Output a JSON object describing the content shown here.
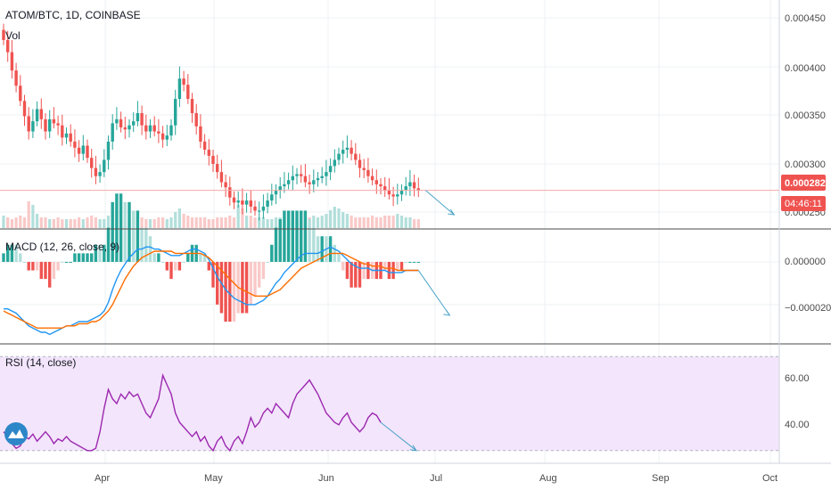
{
  "symbol_title": "ATOM/BTC, 1D, COINBASE",
  "volume_label": "Vol",
  "price_tag": "0.000282",
  "countdown_tag": "04:46:11",
  "colors": {
    "up": "#26a69a",
    "down": "#ef5350",
    "vol_up": "#b2dfdb",
    "vol_down": "#f8c9c8",
    "macd_line": "#2196f3",
    "signal_line": "#ff6d00",
    "rsi_line": "#9c27b0",
    "rsi_band": "#f3e5fb",
    "projection": "#4aa3c8",
    "price_line": "#f4aaa8",
    "tag_bg": "#ef5350"
  },
  "chart_data": [
    {
      "type": "candlestick",
      "title": "ATOM/BTC, 1D, COINBASE",
      "y_ticks": [
        "0.000450",
        "0.000400",
        "0.000350",
        "0.000300",
        "0.000250"
      ],
      "ylim": [
        0.000244,
        0.000465
      ],
      "last_price": 0.000282,
      "projection_target": 0.000258,
      "closes": [
        0.00043,
        0.000418,
        0.0004,
        0.000385,
        0.00037,
        0.000355,
        0.00034,
        0.00035,
        0.000362,
        0.000352,
        0.00034,
        0.000352,
        0.000348,
        0.000346,
        0.000334,
        0.000338,
        0.00033,
        0.000324,
        0.000318,
        0.000326,
        0.000314,
        0.000304,
        0.000296,
        0.0003,
        0.000312,
        0.00033,
        0.000348,
        0.000352,
        0.000344,
        0.000342,
        0.000346,
        0.00035,
        0.000358,
        0.000346,
        0.00034,
        0.000346,
        0.00034,
        0.000338,
        0.000332,
        0.000336,
        0.000346,
        0.000372,
        0.000392,
        0.000386,
        0.000372,
        0.000358,
        0.000345,
        0.00033,
        0.000322,
        0.000316,
        0.000308,
        0.0003,
        0.00029,
        0.000285,
        0.000275,
        0.00027,
        0.000272,
        0.000268,
        0.000272,
        0.000266,
        0.000262,
        0.000262,
        0.000266,
        0.000272,
        0.000278,
        0.000282,
        0.000286,
        0.000288,
        0.000292,
        0.000296,
        0.000298,
        0.000296,
        0.00029,
        0.000288,
        0.000292,
        0.000294,
        0.000296,
        0.0003,
        0.000306,
        0.000312,
        0.000318,
        0.000322,
        0.000324,
        0.000318,
        0.000312,
        0.000304,
        0.000302,
        0.000296,
        0.000292,
        0.000288,
        0.000286,
        0.000282,
        0.000278,
        0.000276,
        0.000278,
        0.000282,
        0.000286,
        0.00029,
        0.000284,
        0.000282
      ]
    },
    {
      "type": "bar",
      "title": "Vol",
      "values": [
        14,
        12,
        10,
        12,
        14,
        12,
        30,
        26,
        16,
        12,
        12,
        10,
        10,
        12,
        10,
        10,
        10,
        10,
        12,
        10,
        12,
        14,
        12,
        10,
        10,
        14,
        18,
        16,
        12,
        12,
        10,
        10,
        12,
        12,
        10,
        10,
        10,
        12,
        12,
        10,
        12,
        18,
        22,
        16,
        14,
        12,
        12,
        12,
        12,
        10,
        10,
        12,
        12,
        12,
        14,
        12,
        26,
        22,
        14,
        14,
        12,
        12,
        12,
        10,
        10,
        12,
        12,
        12,
        12,
        10,
        10,
        12,
        12,
        12,
        14,
        12,
        14,
        16,
        20,
        24,
        22,
        18,
        16,
        14,
        12,
        12,
        12,
        12,
        14,
        12,
        12,
        14,
        14,
        14,
        16,
        14,
        12,
        12,
        10,
        10
      ]
    },
    {
      "type": "line",
      "title": "MACD (12, 26, close, 9)",
      "y_ticks": [
        "0.000000",
        "−0.000020"
      ],
      "ylim": [
        -3.8e-05,
        1.5e-05
      ],
      "series": [
        {
          "name": "MACD",
          "values": [
            -2.2e-05,
            -2.2e-05,
            -2.3e-05,
            -2.4e-05,
            -2.6e-05,
            -2.8e-05,
            -3e-05,
            -3.1e-05,
            -3.2e-05,
            -3.3e-05,
            -3.3e-05,
            -3.4e-05,
            -3.3e-05,
            -3.2e-05,
            -3.1e-05,
            -3e-05,
            -3e-05,
            -2.9e-05,
            -2.8e-05,
            -2.8e-05,
            -2.8e-05,
            -2.7e-05,
            -2.6e-05,
            -2.5e-05,
            -2.3e-05,
            -1.9e-05,
            -1.3e-05,
            -8e-06,
            -4e-06,
            -1e-06,
            2e-06,
            4e-06,
            6e-06,
            6e-06,
            7e-06,
            7e-06,
            6e-06,
            6e-06,
            5e-06,
            4e-06,
            3e-06,
            3e-06,
            3e-06,
            4e-06,
            5e-06,
            6e-06,
            6e-06,
            5e-06,
            4e-06,
            1e-06,
            -3e-06,
            -7e-06,
            -1e-05,
            -1.3e-05,
            -1.5e-05,
            -1.7e-05,
            -1.8e-05,
            -1.9e-05,
            -2e-05,
            -2e-05,
            -2e-05,
            -1.9e-05,
            -1.8e-05,
            -1.6e-05,
            -1.3e-05,
            -1e-05,
            -8e-06,
            -5e-06,
            -3e-06,
            -1e-06,
            1e-06,
            3e-06,
            4e-06,
            4e-06,
            4e-06,
            4e-06,
            5e-06,
            6e-06,
            7e-06,
            6e-06,
            5e-06,
            3e-06,
            1e-06,
            -1e-06,
            -2e-06,
            -3e-06,
            -3e-06,
            -3e-06,
            -4e-06,
            -4e-06,
            -4e-06,
            -4e-06,
            -5e-06,
            -5e-06,
            -5e-06,
            -5e-06,
            -4e-06,
            -4e-06,
            -4e-06,
            -4e-06
          ]
        },
        {
          "name": "Signal",
          "values": [
            -2.3e-05,
            -2.4e-05,
            -2.5e-05,
            -2.6e-05,
            -2.7e-05,
            -2.8e-05,
            -2.9e-05,
            -3e-05,
            -3.1e-05,
            -3.1e-05,
            -3.1e-05,
            -3.1e-05,
            -3.1e-05,
            -3.1e-05,
            -3.1e-05,
            -3e-05,
            -3e-05,
            -3e-05,
            -2.9e-05,
            -2.9e-05,
            -2.9e-05,
            -2.8e-05,
            -2.8e-05,
            -2.7e-05,
            -2.5e-05,
            -2.3e-05,
            -2e-05,
            -1.6e-05,
            -1.2e-05,
            -8e-06,
            -5e-06,
            -2e-06,
            0.0,
            2e-06,
            3e-06,
            4e-06,
            5e-06,
            5e-06,
            5e-06,
            5e-06,
            5e-06,
            4e-06,
            4e-06,
            4e-06,
            4e-06,
            4e-06,
            4e-06,
            4e-06,
            3e-06,
            2e-06,
            0.0,
            -2e-06,
            -4e-06,
            -6e-06,
            -8e-06,
            -1e-05,
            -1.2e-05,
            -1.3e-05,
            -1.4e-05,
            -1.5e-05,
            -1.6e-05,
            -1.6e-05,
            -1.6e-05,
            -1.6e-05,
            -1.5e-05,
            -1.4e-05,
            -1.3e-05,
            -1.1e-05,
            -9e-06,
            -7e-06,
            -5e-06,
            -3e-06,
            -2e-06,
            -1e-06,
            0.0,
            1e-06,
            2e-06,
            3e-06,
            4e-06,
            4e-06,
            4e-06,
            4e-06,
            3e-06,
            2e-06,
            1e-06,
            0.0,
            -1e-06,
            -1e-06,
            -2e-06,
            -2e-06,
            -2e-06,
            -3e-06,
            -3e-06,
            -3e-06,
            -4e-06,
            -4e-06,
            -4e-06,
            -4e-06,
            -4e-06,
            -4e-06
          ]
        }
      ],
      "projection_target": -2.5e-05
    },
    {
      "type": "line",
      "title": "RSI (14, close)",
      "y_ticks": [
        "60.00",
        "40.00"
      ],
      "ylim": [
        25,
        75
      ],
      "band": [
        30,
        70
      ],
      "series": [
        {
          "name": "RSI",
          "values": [
            38,
            36,
            33,
            31,
            32,
            36,
            35,
            37,
            34,
            36,
            38,
            36,
            33,
            35,
            34,
            36,
            34,
            33,
            32,
            31,
            30,
            30,
            31,
            38,
            48,
            56,
            52,
            50,
            54,
            52,
            55,
            53,
            54,
            50,
            46,
            44,
            48,
            52,
            62,
            58,
            54,
            46,
            42,
            40,
            38,
            36,
            38,
            34,
            36,
            32,
            30,
            34,
            36,
            32,
            30,
            34,
            36,
            33,
            38,
            44,
            40,
            42,
            46,
            48,
            46,
            50,
            48,
            46,
            44,
            50,
            54,
            56,
            58,
            60,
            57,
            54,
            50,
            46,
            44,
            42,
            41,
            44,
            46,
            42,
            40,
            38,
            40,
            44,
            46,
            45,
            42
          ]
        }
      ],
      "projection_target": 30
    }
  ],
  "x_axis": {
    "labels": [
      "Apr",
      "May",
      "Jun",
      "Jul",
      "Aug",
      "Sep",
      "Oct"
    ]
  }
}
